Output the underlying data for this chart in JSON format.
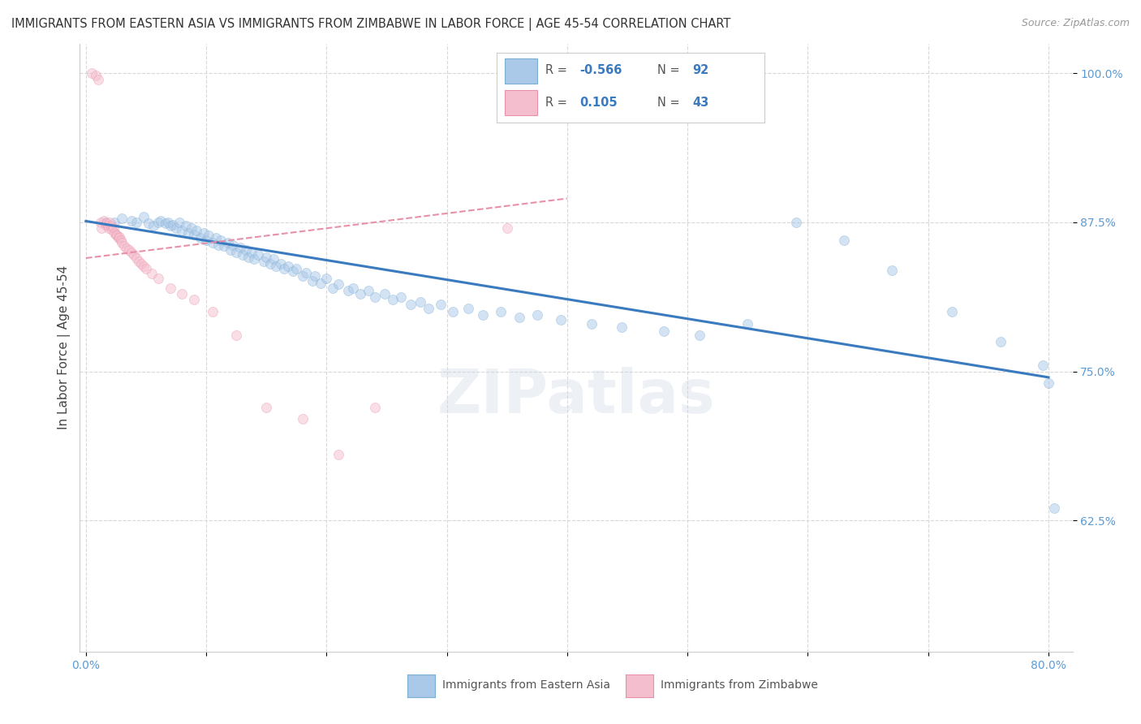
{
  "title": "IMMIGRANTS FROM EASTERN ASIA VS IMMIGRANTS FROM ZIMBABWE IN LABOR FORCE | AGE 45-54 CORRELATION CHART",
  "source": "Source: ZipAtlas.com",
  "ylabel": "In Labor Force | Age 45-54",
  "xmin": -0.005,
  "xmax": 0.82,
  "ymin": 0.515,
  "ymax": 1.025,
  "xticks": [
    0.0,
    0.1,
    0.2,
    0.3,
    0.4,
    0.5,
    0.6,
    0.7,
    0.8
  ],
  "xticklabels": [
    "0.0%",
    "",
    "",
    "",
    "",
    "",
    "",
    "",
    "80.0%"
  ],
  "yticks": [
    0.625,
    0.75,
    0.875,
    1.0
  ],
  "yticklabels": [
    "62.5%",
    "75.0%",
    "87.5%",
    "100.0%"
  ],
  "blue_scatter_x": [
    0.016,
    0.024,
    0.03,
    0.038,
    0.042,
    0.048,
    0.052,
    0.056,
    0.06,
    0.062,
    0.066,
    0.068,
    0.07,
    0.072,
    0.075,
    0.078,
    0.08,
    0.083,
    0.085,
    0.088,
    0.09,
    0.092,
    0.095,
    0.098,
    0.1,
    0.102,
    0.105,
    0.108,
    0.11,
    0.112,
    0.115,
    0.118,
    0.12,
    0.122,
    0.125,
    0.128,
    0.13,
    0.133,
    0.135,
    0.138,
    0.14,
    0.143,
    0.148,
    0.15,
    0.153,
    0.156,
    0.158,
    0.162,
    0.165,
    0.168,
    0.172,
    0.175,
    0.18,
    0.183,
    0.188,
    0.19,
    0.195,
    0.2,
    0.205,
    0.21,
    0.218,
    0.222,
    0.228,
    0.235,
    0.24,
    0.248,
    0.255,
    0.262,
    0.27,
    0.278,
    0.285,
    0.295,
    0.305,
    0.318,
    0.33,
    0.345,
    0.36,
    0.375,
    0.395,
    0.42,
    0.445,
    0.48,
    0.51,
    0.55,
    0.59,
    0.63,
    0.67,
    0.72,
    0.76,
    0.795,
    0.8,
    0.805
  ],
  "blue_scatter_y": [
    0.875,
    0.875,
    0.878,
    0.876,
    0.875,
    0.88,
    0.874,
    0.872,
    0.875,
    0.876,
    0.874,
    0.875,
    0.872,
    0.873,
    0.87,
    0.875,
    0.868,
    0.872,
    0.866,
    0.87,
    0.865,
    0.868,
    0.862,
    0.866,
    0.86,
    0.864,
    0.858,
    0.862,
    0.856,
    0.86,
    0.855,
    0.858,
    0.852,
    0.856,
    0.85,
    0.854,
    0.848,
    0.852,
    0.846,
    0.85,
    0.844,
    0.848,
    0.842,
    0.846,
    0.84,
    0.844,
    0.838,
    0.84,
    0.836,
    0.838,
    0.834,
    0.836,
    0.83,
    0.833,
    0.826,
    0.83,
    0.824,
    0.828,
    0.82,
    0.823,
    0.818,
    0.82,
    0.815,
    0.818,
    0.812,
    0.815,
    0.81,
    0.812,
    0.806,
    0.808,
    0.803,
    0.806,
    0.8,
    0.803,
    0.797,
    0.8,
    0.795,
    0.797,
    0.793,
    0.79,
    0.787,
    0.784,
    0.78,
    0.79,
    0.875,
    0.86,
    0.835,
    0.8,
    0.775,
    0.755,
    0.74,
    0.635
  ],
  "pink_scatter_x": [
    0.005,
    0.008,
    0.01,
    0.012,
    0.013,
    0.015,
    0.016,
    0.017,
    0.018,
    0.019,
    0.02,
    0.021,
    0.022,
    0.023,
    0.024,
    0.025,
    0.026,
    0.027,
    0.028,
    0.029,
    0.03,
    0.032,
    0.034,
    0.036,
    0.038,
    0.04,
    0.042,
    0.044,
    0.046,
    0.048,
    0.05,
    0.055,
    0.06,
    0.07,
    0.08,
    0.09,
    0.105,
    0.125,
    0.15,
    0.18,
    0.21,
    0.24,
    0.35
  ],
  "pink_scatter_y": [
    1.0,
    0.998,
    0.995,
    0.875,
    0.87,
    0.876,
    0.873,
    0.874,
    0.872,
    0.87,
    0.875,
    0.872,
    0.869,
    0.87,
    0.866,
    0.865,
    0.864,
    0.862,
    0.863,
    0.86,
    0.858,
    0.855,
    0.853,
    0.852,
    0.85,
    0.848,
    0.845,
    0.842,
    0.84,
    0.838,
    0.836,
    0.832,
    0.828,
    0.82,
    0.815,
    0.81,
    0.8,
    0.78,
    0.72,
    0.71,
    0.68,
    0.72,
    0.87
  ],
  "blue_line_x": [
    0.0,
    0.8
  ],
  "blue_line_y": [
    0.876,
    0.745
  ],
  "pink_line_x": [
    0.0,
    0.4
  ],
  "pink_line_y": [
    0.845,
    0.895
  ],
  "watermark": "ZIPatlas",
  "blue_dot_color": "#aac8e8",
  "blue_dot_edge": "#7bafd4",
  "pink_dot_color": "#f5bece",
  "pink_dot_edge": "#e890a8",
  "blue_line_color": "#3a7bbf",
  "pink_line_color": "#e890a8",
  "grid_color": "#d8d8d8",
  "axis_tick_color": "#5b9bd5",
  "background_color": "#ffffff",
  "title_fontsize": 10.5,
  "dot_size": 75,
  "dot_alpha": 0.5
}
